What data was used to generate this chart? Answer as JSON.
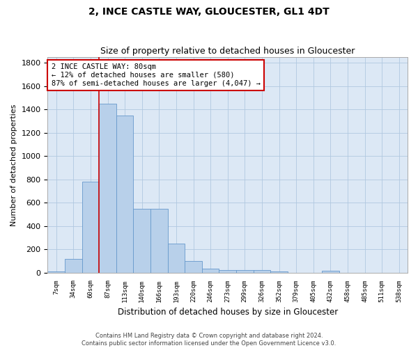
{
  "title": "2, INCE CASTLE WAY, GLOUCESTER, GL1 4DT",
  "subtitle": "Size of property relative to detached houses in Gloucester",
  "xlabel": "Distribution of detached houses by size in Gloucester",
  "ylabel": "Number of detached properties",
  "bar_labels": [
    "7sqm",
    "34sqm",
    "60sqm",
    "87sqm",
    "113sqm",
    "140sqm",
    "166sqm",
    "193sqm",
    "220sqm",
    "246sqm",
    "273sqm",
    "299sqm",
    "326sqm",
    "352sqm",
    "379sqm",
    "405sqm",
    "432sqm",
    "458sqm",
    "485sqm",
    "511sqm",
    "538sqm"
  ],
  "bar_values": [
    10,
    120,
    780,
    1450,
    1350,
    550,
    550,
    250,
    100,
    35,
    25,
    20,
    20,
    10,
    0,
    0,
    15,
    0,
    0,
    0,
    0
  ],
  "bar_color": "#b8d0ea",
  "bar_edge_color": "#6699cc",
  "ylim": [
    0,
    1850
  ],
  "yticks": [
    0,
    200,
    400,
    600,
    800,
    1000,
    1200,
    1400,
    1600,
    1800
  ],
  "property_line_label": "2 INCE CASTLE WAY: 80sqm",
  "annotation_line1": "← 12% of detached houses are smaller (580)",
  "annotation_line2": "87% of semi-detached houses are larger (4,047) →",
  "footer_line1": "Contains HM Land Registry data © Crown copyright and database right 2024.",
  "footer_line2": "Contains public sector information licensed under the Open Government Licence v3.0.",
  "background_color": "#ffffff",
  "plot_bg_color": "#dce8f5",
  "grid_color": "#b0c8e0"
}
